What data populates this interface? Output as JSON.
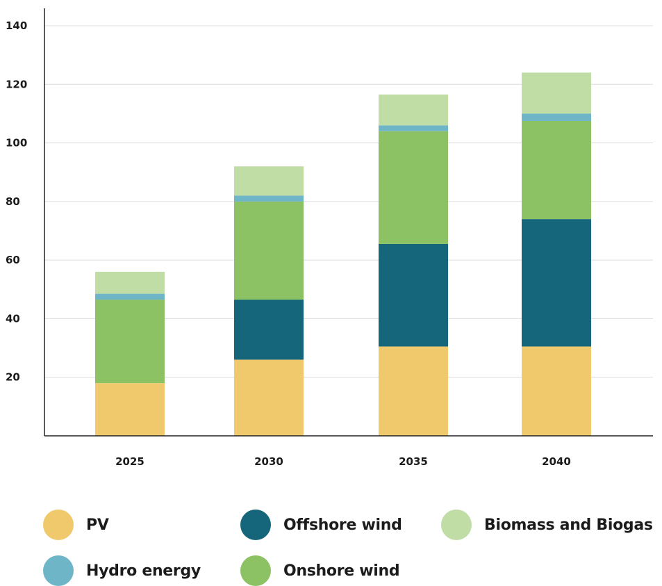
{
  "chart_data": {
    "type": "bar",
    "stacked": true,
    "categories": [
      "2025",
      "2030",
      "2035",
      "2040"
    ],
    "series": [
      {
        "name": "PV",
        "color": "#F0C96C",
        "values": [
          18,
          26,
          30.5,
          30.5
        ]
      },
      {
        "name": "Offshore wind",
        "color": "#15667A",
        "values": [
          0,
          20.5,
          35,
          43.5
        ]
      },
      {
        "name": "Onshore wind",
        "color": "#8CC264",
        "values": [
          28.5,
          33.5,
          38.5,
          33.5
        ]
      },
      {
        "name": "Hydro energy",
        "color": "#6FB5C8",
        "values": [
          2,
          2,
          2,
          2.5
        ]
      },
      {
        "name": "Biomass and Biogas",
        "color": "#C0DDA6",
        "values": [
          7.5,
          10,
          10.5,
          14
        ]
      }
    ],
    "ylim": [
      0,
      140
    ],
    "yticks": [
      20,
      40,
      60,
      80,
      100,
      120,
      140
    ],
    "grid": true,
    "legend_position": "bottom"
  },
  "legend": [
    {
      "label": "PV",
      "color": "#F0C96C"
    },
    {
      "label": "Offshore wind",
      "color": "#15667A"
    },
    {
      "label": "Biomass and Biogas",
      "color": "#C0DDA6"
    },
    {
      "label": "Hydro energy",
      "color": "#6FB5C8"
    },
    {
      "label": "Onshore wind",
      "color": "#8CC264"
    }
  ]
}
